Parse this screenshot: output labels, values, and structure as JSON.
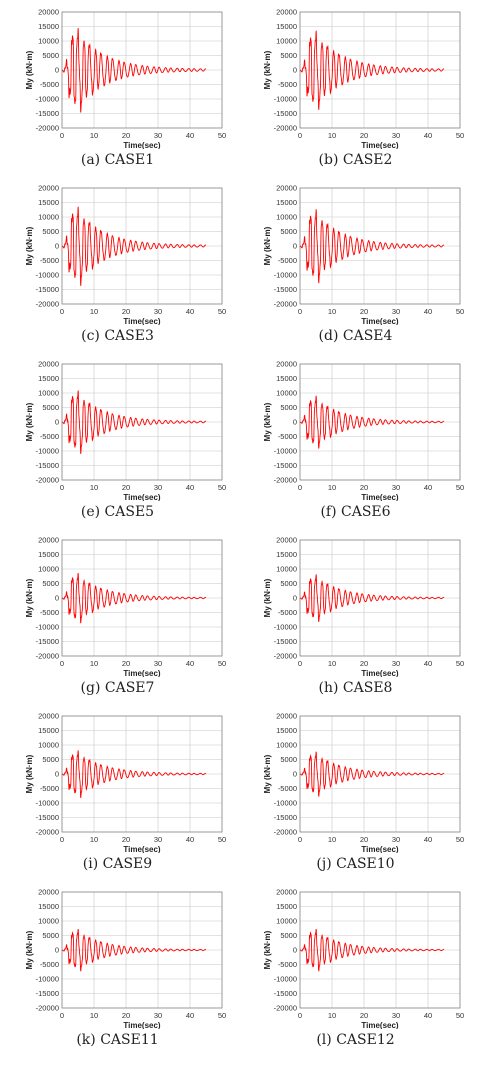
{
  "figure": {
    "panels": [
      {
        "caption": "(a) CASE1",
        "amp": 16000,
        "decay": 0.115
      },
      {
        "caption": "(b) CASE2",
        "amp": 15000,
        "decay": 0.115
      },
      {
        "caption": "(c) CASE3",
        "amp": 15000,
        "decay": 0.12
      },
      {
        "caption": "(d) CASE4",
        "amp": 14000,
        "decay": 0.12
      },
      {
        "caption": "(e) CASE5",
        "amp": 12000,
        "decay": 0.12
      },
      {
        "caption": "(f) CASE6",
        "amp": 10000,
        "decay": 0.12
      },
      {
        "caption": "(g) CASE7",
        "amp": 9500,
        "decay": 0.12
      },
      {
        "caption": "(h) CASE8",
        "amp": 9000,
        "decay": 0.12
      },
      {
        "caption": "(i) CASE9",
        "amp": 9000,
        "decay": 0.12
      },
      {
        "caption": "(j) CASE10",
        "amp": 8500,
        "decay": 0.12
      },
      {
        "caption": "(k) CASE11",
        "amp": 8000,
        "decay": 0.12
      },
      {
        "caption": "(l) CASE12",
        "amp": 8000,
        "decay": 0.12
      }
    ]
  },
  "chart_data": {
    "type": "line",
    "xlabel": "Time(sec)",
    "ylabel": "My (kN·m)",
    "xlim": [
      0,
      50
    ],
    "ylim": [
      -20000,
      20000
    ],
    "xticks": [
      0,
      10,
      20,
      30,
      40,
      50
    ],
    "yticks": [
      20000,
      15000,
      10000,
      5000,
      0,
      -5000,
      -10000,
      -15000,
      -20000
    ],
    "grid": true,
    "series_color": "#ff0000",
    "t_end": 45
  }
}
